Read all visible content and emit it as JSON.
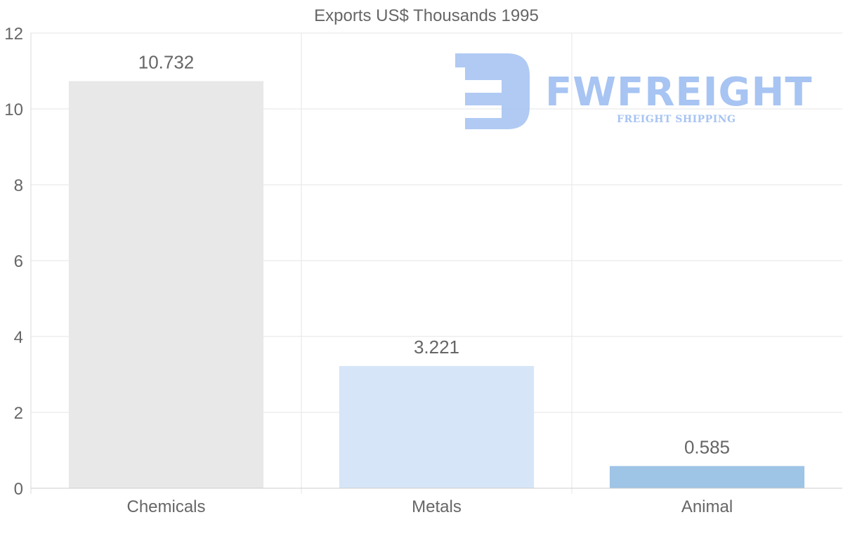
{
  "chart_data": {
    "type": "bar",
    "title": "Exports US$ Thousands 1995",
    "categories": [
      "Chemicals",
      "Metals",
      "Animal"
    ],
    "values": [
      10.732,
      3.221,
      0.585
    ],
    "data_labels": [
      "10.732",
      "3.221",
      "0.585"
    ],
    "bar_colors": [
      "#e8e8e8",
      "#d6e6f8",
      "#9ec4e6"
    ],
    "ylim": [
      0,
      12
    ],
    "yticks": [
      0,
      2,
      4,
      6,
      8,
      10,
      12
    ],
    "ytick_labels": [
      "0",
      "2",
      "4",
      "6",
      "8",
      "10",
      "12"
    ],
    "xlabel": "",
    "ylabel": "",
    "grid": true,
    "legend": "none"
  },
  "watermark": {
    "name": "FWFREIGHT",
    "tagline": "FREIGHT SHIPPING",
    "color": "#a7c4f2"
  }
}
